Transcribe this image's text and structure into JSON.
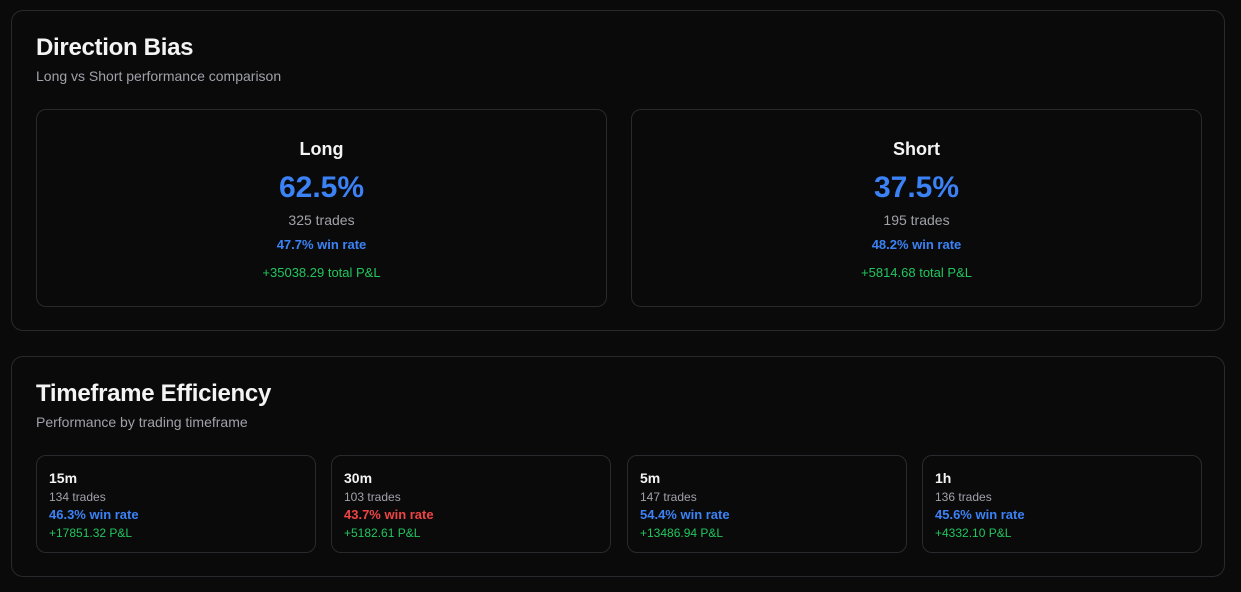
{
  "direction_bias": {
    "title": "Direction Bias",
    "subtitle": "Long vs Short performance comparison",
    "long": {
      "label": "Long",
      "percent": "62.5%",
      "trades": "325 trades",
      "win_rate": "47.7% win rate",
      "pnl": "+35038.29 total P&L"
    },
    "short": {
      "label": "Short",
      "percent": "37.5%",
      "trades": "195 trades",
      "win_rate": "48.2% win rate",
      "pnl": "+5814.68 total P&L"
    }
  },
  "timeframe_efficiency": {
    "title": "Timeframe Efficiency",
    "subtitle": "Performance by trading timeframe",
    "items": [
      {
        "name": "15m",
        "trades": "134 trades",
        "win_rate": "46.3% win rate",
        "win_color": "blue",
        "pnl": "+17851.32 P&L"
      },
      {
        "name": "30m",
        "trades": "103 trades",
        "win_rate": "43.7% win rate",
        "win_color": "red",
        "pnl": "+5182.61 P&L"
      },
      {
        "name": "5m",
        "trades": "147 trades",
        "win_rate": "54.4% win rate",
        "win_color": "blue",
        "pnl": "+13486.94 P&L"
      },
      {
        "name": "1h",
        "trades": "136 trades",
        "win_rate": "45.6% win rate",
        "win_color": "blue",
        "pnl": "+4332.10 P&L"
      }
    ]
  },
  "colors": {
    "background": "#0a0a0b",
    "border": "#2a2a2e",
    "accent_blue": "#3b82f6",
    "negative_red": "#ef4444",
    "positive_green": "#22c55e",
    "muted_text": "#a1a1aa"
  }
}
